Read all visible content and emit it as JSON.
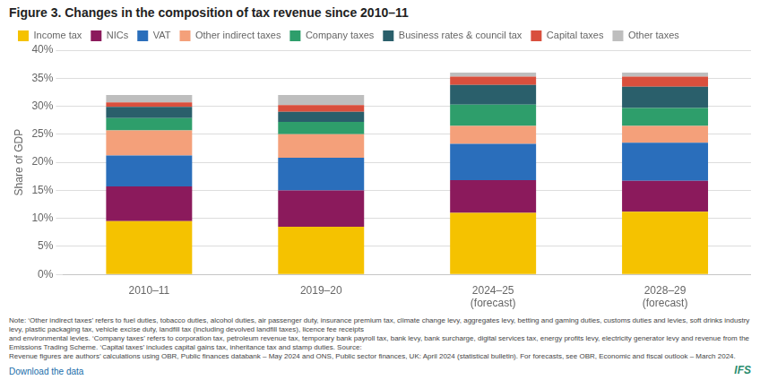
{
  "chart_data": {
    "type": "bar",
    "stacked": true,
    "title": "Figure 3. Changes in the composition of tax revenue since 2010–11",
    "ylabel": "Share of GDP",
    "categories": [
      "2010–11",
      "2019–20",
      "2024–25\n(forecast)",
      "2028–29\n(forecast)"
    ],
    "series": [
      {
        "name": "Income tax",
        "color": "#F5C200",
        "values": [
          9.5,
          8.5,
          11.0,
          11.2
        ]
      },
      {
        "name": "NICs",
        "color": "#8B1A5C",
        "values": [
          6.2,
          6.5,
          5.8,
          5.5
        ]
      },
      {
        "name": "VAT",
        "color": "#2A6EBB",
        "values": [
          5.5,
          5.8,
          6.5,
          6.8
        ]
      },
      {
        "name": "Other indirect taxes",
        "color": "#F4A07A",
        "values": [
          4.5,
          4.2,
          3.2,
          3.0
        ]
      },
      {
        "name": "Company taxes",
        "color": "#2E9E6B",
        "values": [
          2.2,
          2.2,
          3.8,
          3.2
        ]
      },
      {
        "name": "Business rates & council tax",
        "color": "#2A5F6B",
        "values": [
          2.0,
          1.8,
          3.5,
          3.8
        ]
      },
      {
        "name": "Capital taxes",
        "color": "#D94F3D",
        "values": [
          0.8,
          1.2,
          1.5,
          1.8
        ]
      },
      {
        "name": "Other taxes",
        "color": "#BEBEBE",
        "values": [
          1.3,
          1.8,
          0.7,
          0.7
        ]
      }
    ],
    "ylim": [
      0,
      40
    ],
    "yticks": [
      {
        "value": 0,
        "label": "0%"
      },
      {
        "value": 5,
        "label": "5%"
      },
      {
        "value": 10,
        "label": "10%"
      },
      {
        "value": 15,
        "label": "15%"
      },
      {
        "value": 20,
        "label": "20%"
      },
      {
        "value": 25,
        "label": "25%"
      },
      {
        "value": 30,
        "label": "30%"
      },
      {
        "value": 35,
        "label": "35%"
      },
      {
        "value": 40,
        "label": "40%"
      }
    ],
    "grid": true,
    "legend": "upper left",
    "annotations": [
      "Note: ‘Other indirect taxes’ refers to fuel duties, tobacco duties, alcohol duties, air passenger duty, insurance premium tax, climate change levy, aggregates levy, betting and gaming duties, customs duties and levies, soft drinks industry levy, plastic packaging tax, vehicle excise duty, landfill tax (including devolved landfill taxes), licence fee receipts\nand environmental levies. ‘Company taxes’ refers to corporation tax, petroleum revenue tax, temporary bank payroll tax, bank levy, bank surcharge, digital services tax, energy profits levy, electricity generator levy and revenue from the Emissions Trading Scheme. ‘Capital taxes’ includes capital gains tax, inheritance tax and stamp duties. Source:\nRevenue figures are authors’ calculations using OBR, Public finances databank – May 2024 and ONS, Public sector finances, UK: April 2024 (statistical bulletin). For forecasts, see OBR, Economic and fiscal outlook – March 2024.",
      "Download the data",
      "IFS"
    ]
  }
}
